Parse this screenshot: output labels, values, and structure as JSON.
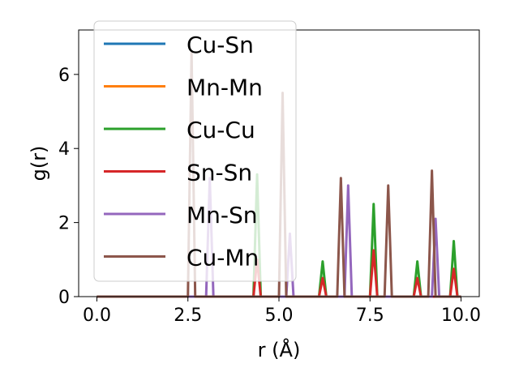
{
  "chart_data": {
    "type": "line",
    "title": "",
    "xlabel": "r (Å)",
    "ylabel": "g(r)",
    "xlim": [
      -0.5,
      10.5
    ],
    "ylim": [
      0,
      7.2
    ],
    "xticks": [
      0.0,
      2.5,
      5.0,
      7.5,
      10.0
    ],
    "xtick_labels": [
      "0.0",
      "2.5",
      "5.0",
      "7.5",
      "10.0"
    ],
    "yticks": [
      0,
      2,
      4,
      6
    ],
    "ytick_labels": [
      "0",
      "2",
      "4",
      "6"
    ],
    "grid": false,
    "legend_position": "upper-left",
    "peak_halfwidth": 0.1,
    "series": [
      {
        "name": "Cu-Sn",
        "color": "#1f77b4",
        "peaks": []
      },
      {
        "name": "Mn-Mn",
        "color": "#ff7f0e",
        "peaks": []
      },
      {
        "name": "Cu-Cu",
        "color": "#2ca02c",
        "peaks": [
          [
            4.4,
            3.3
          ],
          [
            6.2,
            0.95
          ],
          [
            7.6,
            2.5
          ],
          [
            8.8,
            0.95
          ],
          [
            9.8,
            1.5
          ]
        ]
      },
      {
        "name": "Sn-Sn",
        "color": "#d62728",
        "peaks": [
          [
            4.4,
            1.0
          ],
          [
            6.2,
            0.5
          ],
          [
            7.6,
            1.25
          ],
          [
            8.8,
            0.5
          ],
          [
            9.8,
            0.75
          ]
        ]
      },
      {
        "name": "Mn-Sn",
        "color": "#9467bd",
        "peaks": [
          [
            3.1,
            3.2
          ],
          [
            5.3,
            1.7
          ],
          [
            6.9,
            3.0
          ],
          [
            9.3,
            2.1
          ]
        ]
      },
      {
        "name": "Cu-Mn",
        "color": "#8c564b",
        "peaks": [
          [
            2.6,
            6.6
          ],
          [
            5.1,
            5.5
          ],
          [
            6.7,
            3.2
          ],
          [
            8.0,
            3.0
          ],
          [
            9.2,
            3.4
          ]
        ]
      }
    ]
  }
}
